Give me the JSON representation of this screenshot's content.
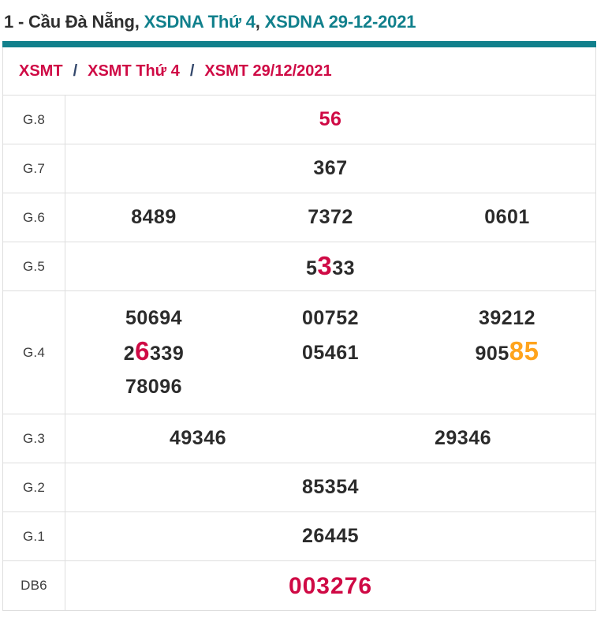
{
  "title": {
    "prefix": "1 - Cầu Đà Nẵng,",
    "link_week": "XSDNA Thứ 4",
    "separator": ",",
    "link_date": "XSDNA 29-12-2021"
  },
  "breadcrumb": {
    "separator": "/",
    "items": [
      "XSMT",
      "XSMT Thứ 4",
      "XSMT 29/12/2021"
    ]
  },
  "colors": {
    "teal": "#11808c",
    "red": "#cf0a45",
    "orange": "#ffa41d",
    "number_dark": "#2b2b2b",
    "border": "#dedede",
    "breadcrumb_slash": "#33476b"
  },
  "table": {
    "rows": [
      {
        "label": "G.8",
        "cols": 1,
        "tall": false,
        "cells": [
          [
            {
              "t": "56",
              "s": "red"
            }
          ]
        ]
      },
      {
        "label": "G.7",
        "cols": 1,
        "tall": false,
        "cells": [
          [
            {
              "t": "367"
            }
          ]
        ]
      },
      {
        "label": "G.6",
        "cols": 3,
        "tall": false,
        "cells": [
          [
            {
              "t": "8489"
            }
          ],
          [
            {
              "t": "7372"
            }
          ],
          [
            {
              "t": "0601"
            }
          ]
        ]
      },
      {
        "label": "G.5",
        "cols": 1,
        "tall": false,
        "cells": [
          [
            {
              "t": "5"
            },
            {
              "t": "3",
              "s": "red big"
            },
            {
              "t": "33"
            }
          ]
        ]
      },
      {
        "label": "G.4",
        "cols": 3,
        "tall": true,
        "cells": [
          [
            {
              "t": "50694"
            }
          ],
          [
            {
              "t": "00752"
            }
          ],
          [
            {
              "t": "39212"
            }
          ],
          [
            {
              "t": "2"
            },
            {
              "t": "6",
              "s": "red big"
            },
            {
              "t": "339"
            }
          ],
          [
            {
              "t": "05461"
            }
          ],
          [
            {
              "t": "905"
            },
            {
              "t": "85",
              "s": "orange big"
            }
          ],
          [
            {
              "t": "78096"
            }
          ]
        ]
      },
      {
        "label": "G.3",
        "cols": 2,
        "tall": false,
        "cells": [
          [
            {
              "t": "49346"
            }
          ],
          [
            {
              "t": "29346"
            }
          ]
        ]
      },
      {
        "label": "G.2",
        "cols": 1,
        "tall": false,
        "cells": [
          [
            {
              "t": "85354"
            }
          ]
        ]
      },
      {
        "label": "G.1",
        "cols": 1,
        "tall": false,
        "cells": [
          [
            {
              "t": "26445"
            }
          ]
        ]
      },
      {
        "label": "DB6",
        "cols": 1,
        "tall": false,
        "cells": [
          [
            {
              "t": "003276",
              "s": "red xl"
            }
          ]
        ]
      }
    ]
  }
}
